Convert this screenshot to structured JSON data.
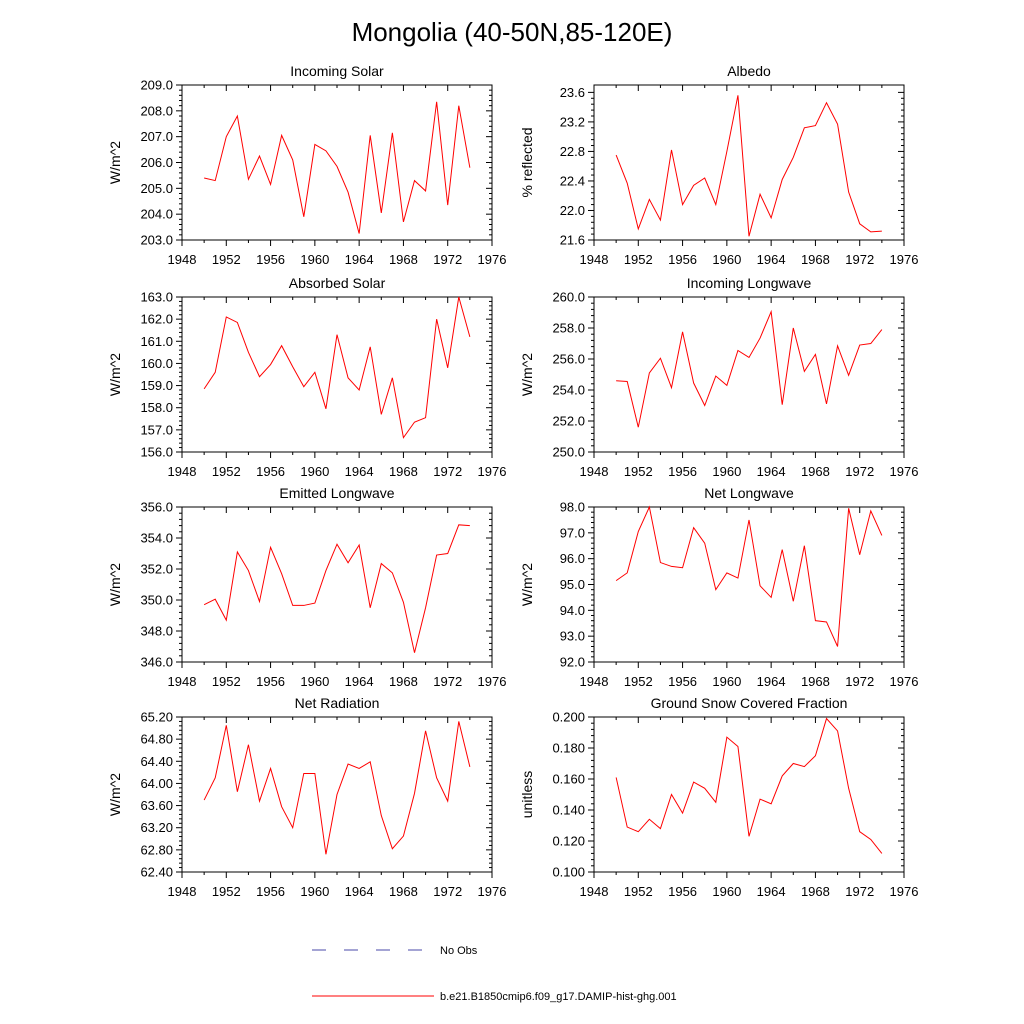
{
  "figure": {
    "title": "Mongolia (40-50N,85-120E)",
    "series_color": "#ff0000",
    "noobs_color": "#4a4aa8"
  },
  "legend": {
    "items": [
      {
        "label": "No Obs",
        "style": "dashed",
        "color": "#4a4aa8"
      },
      {
        "label": "b.e21.B1850cmip6.f09_g17.DAMIP-hist-ghg.001",
        "style": "solid",
        "color": "#ff0000"
      }
    ]
  },
  "chart_data": [
    {
      "type": "line",
      "title": "Incoming Solar",
      "ylabel": "W/m^2",
      "xlim": [
        1948,
        1976
      ],
      "ylim": [
        203.0,
        209.0
      ],
      "xticks": [
        1948,
        1952,
        1956,
        1960,
        1964,
        1968,
        1972,
        1976
      ],
      "yticks": [
        203.0,
        204.0,
        205.0,
        206.0,
        207.0,
        208.0,
        209.0
      ],
      "ytick_decimals": 1,
      "series": [
        {
          "x": [
            1950,
            1951,
            1952,
            1953,
            1954,
            1955,
            1956,
            1957,
            1958,
            1959,
            1960,
            1961,
            1962,
            1963,
            1964,
            1965,
            1966,
            1967,
            1968,
            1969,
            1970,
            1971,
            1972,
            1973,
            1974
          ],
          "values": [
            205.4,
            205.3,
            207.0,
            207.8,
            205.35,
            206.25,
            205.15,
            207.05,
            206.1,
            203.9,
            206.7,
            206.45,
            205.85,
            204.85,
            203.25,
            207.05,
            204.05,
            207.15,
            203.7,
            205.3,
            204.9,
            208.35,
            204.35,
            208.2,
            205.8
          ]
        }
      ]
    },
    {
      "type": "line",
      "title": "Albedo",
      "ylabel": "% reflected",
      "xlim": [
        1948,
        1976
      ],
      "ylim": [
        21.6,
        23.7
      ],
      "xticks": [
        1948,
        1952,
        1956,
        1960,
        1964,
        1968,
        1972,
        1976
      ],
      "yticks": [
        21.6,
        22.0,
        22.4,
        22.8,
        23.2,
        23.6
      ],
      "ytick_decimals": 1,
      "series": [
        {
          "x": [
            1950,
            1951,
            1952,
            1953,
            1954,
            1955,
            1956,
            1957,
            1958,
            1959,
            1960,
            1961,
            1962,
            1963,
            1964,
            1965,
            1966,
            1967,
            1968,
            1969,
            1970,
            1971,
            1972,
            1973,
            1974
          ],
          "values": [
            22.75,
            22.37,
            21.75,
            22.15,
            21.87,
            22.82,
            22.08,
            22.34,
            22.44,
            22.08,
            22.8,
            23.56,
            21.65,
            22.22,
            21.9,
            22.42,
            22.72,
            23.12,
            23.15,
            23.46,
            23.17,
            22.25,
            21.82,
            21.71,
            21.72
          ]
        }
      ]
    },
    {
      "type": "line",
      "title": "Absorbed Solar",
      "ylabel": "W/m^2",
      "xlim": [
        1948,
        1976
      ],
      "ylim": [
        156.0,
        163.0
      ],
      "xticks": [
        1948,
        1952,
        1956,
        1960,
        1964,
        1968,
        1972,
        1976
      ],
      "yticks": [
        156.0,
        157.0,
        158.0,
        159.0,
        160.0,
        161.0,
        162.0,
        163.0
      ],
      "ytick_decimals": 1,
      "series": [
        {
          "x": [
            1950,
            1951,
            1952,
            1953,
            1954,
            1955,
            1956,
            1957,
            1958,
            1959,
            1960,
            1961,
            1962,
            1963,
            1964,
            1965,
            1966,
            1967,
            1968,
            1969,
            1970,
            1971,
            1972,
            1973,
            1974
          ],
          "values": [
            158.85,
            159.6,
            162.1,
            161.85,
            160.5,
            159.4,
            159.95,
            160.8,
            159.85,
            158.95,
            159.6,
            157.95,
            161.3,
            159.35,
            158.8,
            160.75,
            157.7,
            159.35,
            156.65,
            157.35,
            157.55,
            162.0,
            159.8,
            163.0,
            161.2
          ]
        }
      ]
    },
    {
      "type": "line",
      "title": "Incoming Longwave",
      "ylabel": "W/m^2",
      "xlim": [
        1948,
        1976
      ],
      "ylim": [
        250.0,
        260.0
      ],
      "xticks": [
        1948,
        1952,
        1956,
        1960,
        1964,
        1968,
        1972,
        1976
      ],
      "yticks": [
        250.0,
        252.0,
        254.0,
        256.0,
        258.0,
        260.0
      ],
      "ytick_decimals": 1,
      "series": [
        {
          "x": [
            1950,
            1951,
            1952,
            1953,
            1954,
            1955,
            1956,
            1957,
            1958,
            1959,
            1960,
            1961,
            1962,
            1963,
            1964,
            1965,
            1966,
            1967,
            1968,
            1969,
            1970,
            1971,
            1972,
            1973,
            1974
          ],
          "values": [
            254.6,
            254.55,
            251.6,
            255.1,
            256.05,
            254.15,
            257.75,
            254.45,
            253.0,
            254.9,
            254.3,
            256.55,
            256.1,
            257.35,
            259.05,
            253.05,
            258.0,
            255.2,
            256.3,
            253.1,
            256.85,
            254.95,
            256.9,
            257.0,
            257.9
          ]
        }
      ]
    },
    {
      "type": "line",
      "title": "Emitted Longwave",
      "ylabel": "W/m^2",
      "xlim": [
        1948,
        1976
      ],
      "ylim": [
        346.0,
        356.0
      ],
      "xticks": [
        1948,
        1952,
        1956,
        1960,
        1964,
        1968,
        1972,
        1976
      ],
      "yticks": [
        346.0,
        348.0,
        350.0,
        352.0,
        354.0,
        356.0
      ],
      "ytick_decimals": 1,
      "series": [
        {
          "x": [
            1950,
            1951,
            1952,
            1953,
            1954,
            1955,
            1956,
            1957,
            1958,
            1959,
            1960,
            1961,
            1962,
            1963,
            1964,
            1965,
            1966,
            1967,
            1968,
            1969,
            1970,
            1971,
            1972,
            1973,
            1974
          ],
          "values": [
            349.7,
            350.05,
            348.7,
            353.1,
            351.9,
            349.9,
            353.4,
            351.7,
            349.65,
            349.65,
            349.8,
            351.9,
            353.6,
            352.4,
            353.55,
            349.5,
            352.35,
            351.75,
            349.85,
            346.6,
            349.5,
            352.9,
            353.0,
            354.85,
            354.8
          ]
        }
      ]
    },
    {
      "type": "line",
      "title": "Net Longwave",
      "ylabel": "W/m^2",
      "xlim": [
        1948,
        1976
      ],
      "ylim": [
        92.0,
        98.0
      ],
      "xticks": [
        1948,
        1952,
        1956,
        1960,
        1964,
        1968,
        1972,
        1976
      ],
      "yticks": [
        92.0,
        93.0,
        94.0,
        95.0,
        96.0,
        97.0,
        98.0
      ],
      "ytick_decimals": 1,
      "series": [
        {
          "x": [
            1950,
            1951,
            1952,
            1953,
            1954,
            1955,
            1956,
            1957,
            1958,
            1959,
            1960,
            1961,
            1962,
            1963,
            1964,
            1965,
            1966,
            1967,
            1968,
            1969,
            1970,
            1971,
            1972,
            1973,
            1974
          ],
          "values": [
            95.15,
            95.45,
            97.05,
            98.0,
            95.85,
            95.7,
            95.65,
            97.2,
            96.6,
            94.8,
            95.45,
            95.25,
            97.5,
            94.95,
            94.5,
            96.35,
            94.35,
            96.5,
            93.6,
            93.55,
            92.6,
            97.95,
            96.15,
            97.85,
            96.9
          ]
        }
      ]
    },
    {
      "type": "line",
      "title": "Net Radiation",
      "ylabel": "W/m^2",
      "xlim": [
        1948,
        1976
      ],
      "ylim": [
        62.4,
        65.2
      ],
      "xticks": [
        1948,
        1952,
        1956,
        1960,
        1964,
        1968,
        1972,
        1976
      ],
      "yticks": [
        62.4,
        62.8,
        63.2,
        63.6,
        64.0,
        64.4,
        64.8,
        65.2
      ],
      "ytick_decimals": 2,
      "series": [
        {
          "x": [
            1950,
            1951,
            1952,
            1953,
            1954,
            1955,
            1956,
            1957,
            1958,
            1959,
            1960,
            1961,
            1962,
            1963,
            1964,
            1965,
            1966,
            1967,
            1968,
            1969,
            1970,
            1971,
            1972,
            1973,
            1974
          ],
          "values": [
            63.7,
            64.1,
            65.05,
            63.85,
            64.7,
            63.68,
            64.27,
            63.58,
            63.2,
            64.18,
            64.18,
            62.72,
            63.8,
            64.35,
            64.27,
            64.39,
            63.42,
            62.82,
            63.05,
            63.82,
            64.95,
            64.1,
            63.68,
            65.12,
            64.3
          ]
        }
      ]
    },
    {
      "type": "line",
      "title": "Ground Snow Covered Fraction",
      "ylabel": "unitless",
      "xlim": [
        1948,
        1976
      ],
      "ylim": [
        0.1,
        0.2
      ],
      "xticks": [
        1948,
        1952,
        1956,
        1960,
        1964,
        1968,
        1972,
        1976
      ],
      "yticks": [
        0.1,
        0.12,
        0.14,
        0.16,
        0.18,
        0.2
      ],
      "ytick_decimals": 3,
      "series": [
        {
          "x": [
            1950,
            1951,
            1952,
            1953,
            1954,
            1955,
            1956,
            1957,
            1958,
            1959,
            1960,
            1961,
            1962,
            1963,
            1964,
            1965,
            1966,
            1967,
            1968,
            1969,
            1970,
            1971,
            1972,
            1973,
            1974
          ],
          "values": [
            0.161,
            0.129,
            0.126,
            0.134,
            0.128,
            0.15,
            0.138,
            0.158,
            0.154,
            0.145,
            0.187,
            0.181,
            0.123,
            0.147,
            0.144,
            0.162,
            0.17,
            0.168,
            0.175,
            0.199,
            0.191,
            0.154,
            0.126,
            0.121,
            0.112
          ]
        }
      ]
    }
  ]
}
